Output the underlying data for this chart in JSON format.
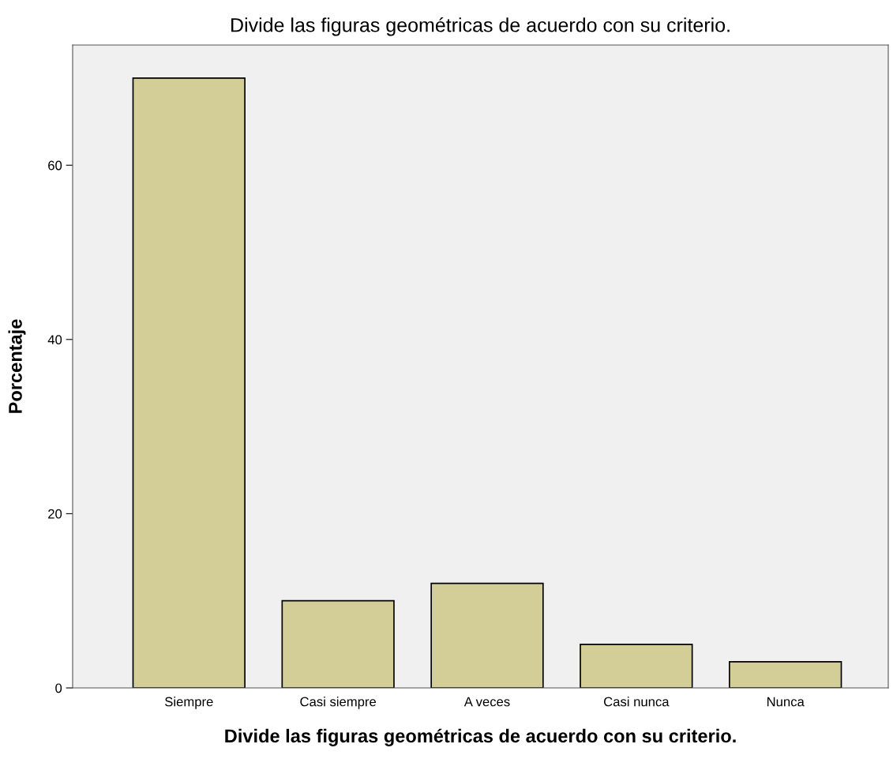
{
  "chart_data": {
    "type": "bar",
    "title": "Divide las figuras geométricas de acuerdo con su criterio.",
    "xlabel": "Divide las figuras geométricas de acuerdo con su criterio.",
    "ylabel": "Porcentaje",
    "categories": [
      "Siempre",
      "Casi siempre",
      "A veces",
      "Casi nunca",
      "Nunca"
    ],
    "values": [
      70,
      10,
      12,
      5,
      3
    ],
    "color": "#d3ce97",
    "ylim": [
      0,
      73.8
    ],
    "yticks": [
      0,
      20,
      40,
      60
    ],
    "grid": false,
    "legend": false
  }
}
